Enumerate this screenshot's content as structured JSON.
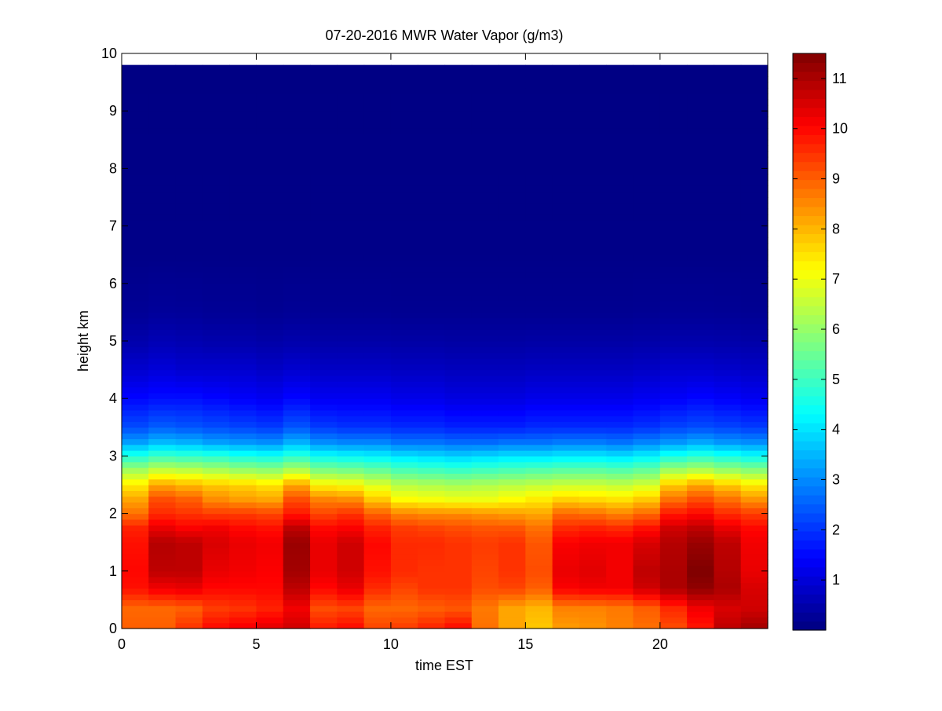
{
  "chart_data": {
    "type": "heatmap",
    "title": "07-20-2016 MWR Water Vapor (g/m3)",
    "xlabel": "time EST",
    "ylabel": "height km",
    "xlim": [
      0,
      24
    ],
    "ylim": [
      0,
      10
    ],
    "x_ticks": [
      0,
      5,
      10,
      15,
      20
    ],
    "y_ticks": [
      0,
      1,
      2,
      3,
      4,
      5,
      6,
      7,
      8,
      9,
      10
    ],
    "colorbar": {
      "range": [
        0,
        11.5
      ],
      "ticks": [
        1,
        2,
        3,
        4,
        5,
        6,
        7,
        8,
        9,
        10,
        11
      ],
      "colormap": "jet"
    },
    "grid": false,
    "time_hours": [
      0,
      1,
      2,
      3,
      4,
      5,
      6,
      7,
      8,
      9,
      10,
      11,
      12,
      13,
      14,
      15,
      16,
      17,
      18,
      19,
      20,
      21,
      22,
      23
    ],
    "height_km": [
      0,
      0.1,
      0.2,
      0.3,
      0.4,
      0.5,
      0.6,
      0.7,
      0.8,
      0.9,
      1.0,
      1.1,
      1.2,
      1.3,
      1.4,
      1.5,
      1.6,
      1.7,
      1.8,
      1.9,
      2.0,
      2.1,
      2.2,
      2.3,
      2.4,
      2.5,
      2.6,
      2.7,
      2.8,
      2.9,
      3.0,
      3.1,
      3.2,
      3.3,
      3.4,
      3.5,
      3.6,
      3.7,
      3.8,
      3.9,
      4.0,
      4.1,
      4.2,
      4.3,
      4.4,
      4.5,
      4.6,
      4.7,
      4.8,
      4.9,
      5.0,
      5.1,
      5.2,
      5.3,
      5.4,
      5.5,
      5.6,
      5.7,
      5.8,
      5.9,
      6.0,
      6.1,
      6.2,
      6.3,
      6.4,
      6.5,
      6.6,
      6.7,
      6.8,
      6.9,
      7.0,
      7.1,
      7.2,
      7.3,
      7.4,
      7.5,
      7.6,
      7.7,
      7.8,
      7.9,
      8.0,
      8.1,
      8.2,
      8.3,
      8.4,
      8.5,
      8.6,
      8.7,
      8.8,
      8.9,
      9.0,
      9.1,
      9.2,
      9.3,
      9.4,
      9.5,
      9.6,
      9.7
    ],
    "profile_heights_km": [
      0,
      0.35,
      0.7,
      1.0,
      1.5,
      1.75,
      2.0,
      2.25,
      2.5,
      2.75,
      3.0,
      3.25,
      3.5,
      4.0,
      4.5,
      5.0,
      5.5,
      6.5,
      9.75
    ],
    "profiles_g_m3": [
      [
        9.0,
        8.9,
        9.9,
        10.0,
        9.9,
        9.7,
        8.8,
        8.2,
        7.4,
        6.2,
        4.7,
        3.2,
        2.3,
        1.5,
        0.9,
        0.5,
        0.25,
        0.1,
        0.05
      ],
      [
        9.0,
        8.9,
        10.2,
        10.8,
        10.9,
        10.3,
        9.6,
        9.2,
        8.2,
        6.6,
        5.0,
        3.5,
        2.5,
        1.6,
        1.0,
        0.6,
        0.3,
        0.1,
        0.05
      ],
      [
        9.5,
        9.0,
        10.3,
        10.8,
        10.8,
        10.1,
        9.5,
        9.0,
        8.0,
        6.5,
        4.9,
        3.4,
        2.4,
        1.6,
        0.9,
        0.55,
        0.28,
        0.1,
        0.05
      ],
      [
        10.0,
        9.4,
        10.0,
        10.3,
        10.5,
        10.2,
        9.4,
        8.5,
        7.8,
        6.3,
        4.8,
        3.2,
        2.3,
        1.5,
        0.9,
        0.5,
        0.25,
        0.1,
        0.05
      ],
      [
        10.2,
        9.5,
        10.0,
        10.2,
        10.3,
        10.0,
        9.4,
        8.3,
        7.7,
        6.1,
        4.6,
        3.1,
        2.2,
        1.4,
        0.9,
        0.5,
        0.25,
        0.1,
        0.05
      ],
      [
        10.4,
        9.7,
        10.0,
        10.1,
        10.2,
        9.9,
        9.3,
        8.2,
        7.5,
        6.0,
        4.5,
        3.0,
        2.1,
        1.3,
        0.8,
        0.45,
        0.22,
        0.1,
        0.05
      ],
      [
        10.6,
        10.2,
        10.8,
        11.1,
        11.2,
        10.8,
        9.8,
        9.2,
        8.2,
        6.4,
        4.8,
        3.4,
        2.4,
        1.5,
        0.9,
        0.5,
        0.25,
        0.1,
        0.05
      ],
      [
        9.8,
        9.2,
        10.0,
        10.3,
        10.3,
        10.0,
        9.3,
        8.6,
        7.3,
        5.8,
        4.4,
        3.0,
        2.1,
        1.3,
        0.8,
        0.45,
        0.22,
        0.1,
        0.05
      ],
      [
        10.0,
        9.3,
        10.3,
        10.6,
        10.6,
        10.1,
        9.5,
        8.5,
        7.2,
        5.7,
        4.3,
        2.9,
        2.0,
        1.3,
        0.8,
        0.45,
        0.22,
        0.1,
        0.05
      ],
      [
        9.3,
        8.9,
        9.6,
        9.9,
        10.0,
        9.7,
        9.0,
        7.8,
        6.8,
        5.5,
        4.2,
        2.9,
        2.0,
        1.3,
        0.8,
        0.45,
        0.22,
        0.1,
        0.05
      ],
      [
        9.4,
        8.9,
        9.3,
        9.6,
        9.6,
        9.4,
        8.6,
        7.2,
        6.4,
        5.2,
        4.0,
        2.7,
        1.9,
        1.2,
        0.75,
        0.42,
        0.2,
        0.1,
        0.05
      ],
      [
        9.7,
        9.0,
        9.5,
        9.5,
        9.6,
        9.3,
        8.5,
        7.1,
        6.3,
        5.1,
        3.9,
        2.7,
        1.9,
        1.2,
        0.75,
        0.42,
        0.2,
        0.1,
        0.05
      ],
      [
        10.0,
        9.1,
        9.5,
        9.5,
        9.5,
        9.2,
        8.5,
        7.0,
        6.2,
        5.0,
        3.8,
        2.6,
        1.8,
        1.1,
        0.7,
        0.4,
        0.2,
        0.1,
        0.05
      ],
      [
        8.8,
        8.7,
        9.2,
        9.3,
        9.4,
        9.1,
        8.4,
        7.0,
        6.3,
        5.1,
        3.9,
        2.6,
        1.8,
        1.1,
        0.7,
        0.4,
        0.2,
        0.1,
        0.05
      ],
      [
        8.2,
        8.2,
        9.3,
        9.5,
        9.5,
        9.1,
        8.3,
        7.2,
        6.4,
        5.2,
        4.0,
        2.7,
        1.8,
        1.1,
        0.7,
        0.4,
        0.2,
        0.1,
        0.05
      ],
      [
        7.8,
        8.0,
        9.0,
        9.2,
        9.1,
        8.8,
        8.2,
        7.4,
        6.5,
        5.3,
        4.0,
        2.7,
        1.9,
        1.2,
        0.75,
        0.42,
        0.2,
        0.1,
        0.05
      ],
      [
        8.3,
        8.6,
        10.1,
        10.3,
        10.1,
        9.6,
        8.9,
        7.7,
        6.6,
        5.4,
        4.1,
        2.8,
        1.9,
        1.2,
        0.75,
        0.42,
        0.2,
        0.1,
        0.05
      ],
      [
        8.4,
        8.6,
        10.2,
        10.4,
        10.2,
        9.7,
        8.8,
        7.6,
        6.6,
        5.4,
        4.1,
        2.8,
        1.9,
        1.2,
        0.75,
        0.42,
        0.2,
        0.1,
        0.05
      ],
      [
        8.6,
        8.7,
        10.2,
        10.2,
        10.2,
        9.6,
        8.6,
        7.5,
        6.5,
        5.3,
        4.0,
        2.7,
        1.9,
        1.2,
        0.75,
        0.42,
        0.2,
        0.1,
        0.05
      ],
      [
        8.8,
        9.0,
        10.6,
        10.8,
        10.5,
        9.9,
        8.9,
        7.8,
        6.7,
        5.5,
        4.2,
        2.9,
        2.0,
        1.3,
        0.8,
        0.45,
        0.22,
        0.1,
        0.05
      ],
      [
        9.2,
        9.6,
        11.0,
        11.0,
        10.9,
        10.6,
        9.8,
        8.8,
        7.8,
        6.2,
        4.6,
        3.1,
        2.2,
        1.4,
        0.9,
        0.5,
        0.25,
        0.1,
        0.05
      ],
      [
        9.8,
        10.2,
        11.3,
        11.5,
        11.2,
        10.8,
        10.0,
        9.2,
        8.2,
        6.4,
        4.8,
        3.3,
        2.3,
        1.5,
        0.9,
        0.5,
        0.25,
        0.1,
        0.05
      ],
      [
        10.8,
        10.5,
        11.0,
        10.9,
        10.8,
        10.3,
        9.6,
        8.8,
        7.8,
        6.1,
        4.6,
        3.1,
        2.2,
        1.4,
        0.85,
        0.48,
        0.24,
        0.1,
        0.05
      ],
      [
        11.1,
        10.6,
        10.5,
        10.3,
        10.2,
        10.0,
        9.4,
        8.4,
        7.4,
        5.9,
        4.4,
        3.0,
        2.1,
        1.3,
        0.8,
        0.45,
        0.22,
        0.1,
        0.05
      ]
    ]
  }
}
